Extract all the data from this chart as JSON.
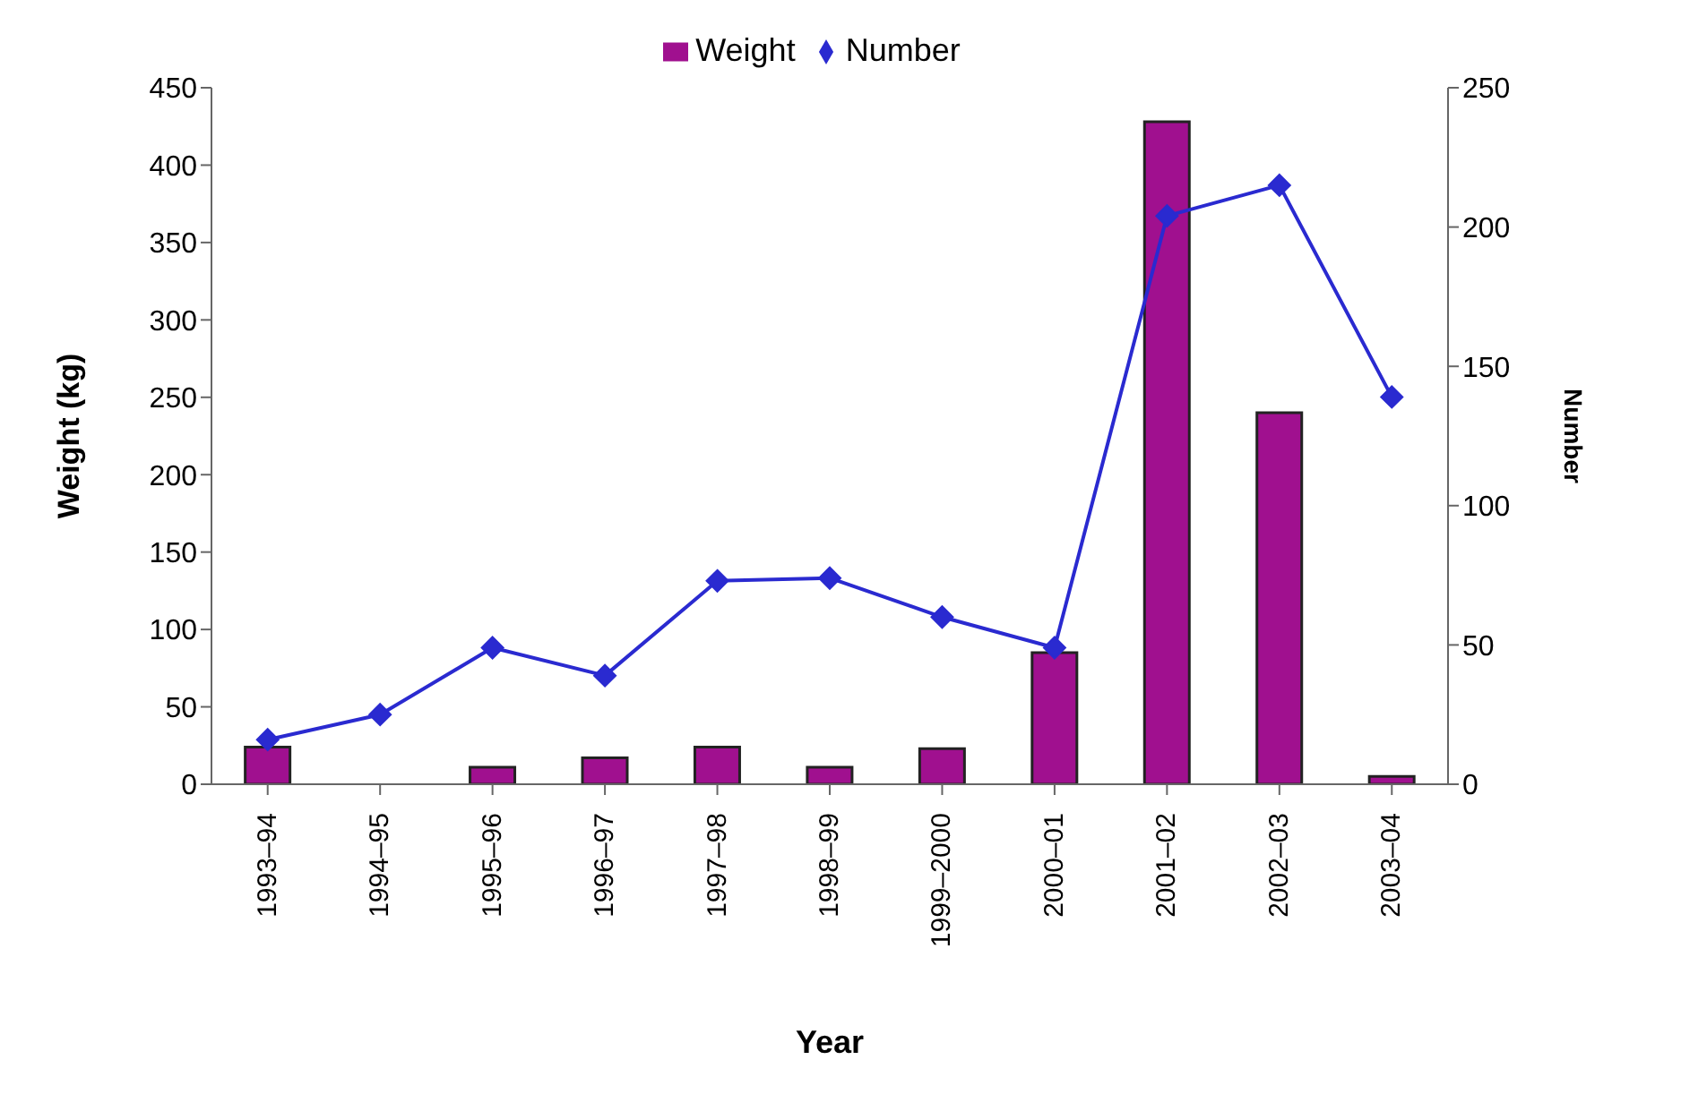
{
  "chart_data": {
    "type": "bar",
    "xlabel": "Year",
    "ylabel": "Weight (kg)",
    "y2label": "Number",
    "categories": [
      "1993–94",
      "1994–95",
      "1995–96",
      "1996–97",
      "1997–98",
      "1998–99",
      "1999–2000",
      "2000–01",
      "2001–02",
      "2002–03",
      "2003–04"
    ],
    "series": [
      {
        "name": "Weight",
        "color": "#a0108f",
        "values": [
          24,
          0,
          11,
          17,
          24,
          11,
          23,
          85,
          428,
          240,
          5
        ]
      },
      {
        "name": "Number",
        "type": "line",
        "axis": "y2",
        "color": "#2a2ad0",
        "marker": "diamond",
        "values": [
          16,
          25,
          49,
          39,
          73,
          74,
          60,
          49,
          204,
          215,
          139
        ]
      }
    ],
    "ylim": [
      0,
      450
    ],
    "yticks": [
      0,
      50,
      100,
      150,
      200,
      250,
      300,
      350,
      400,
      450
    ],
    "y2lim": [
      0,
      250
    ],
    "y2ticks": [
      0,
      50,
      100,
      150,
      200,
      250
    ],
    "grid": false,
    "legend": "top"
  }
}
